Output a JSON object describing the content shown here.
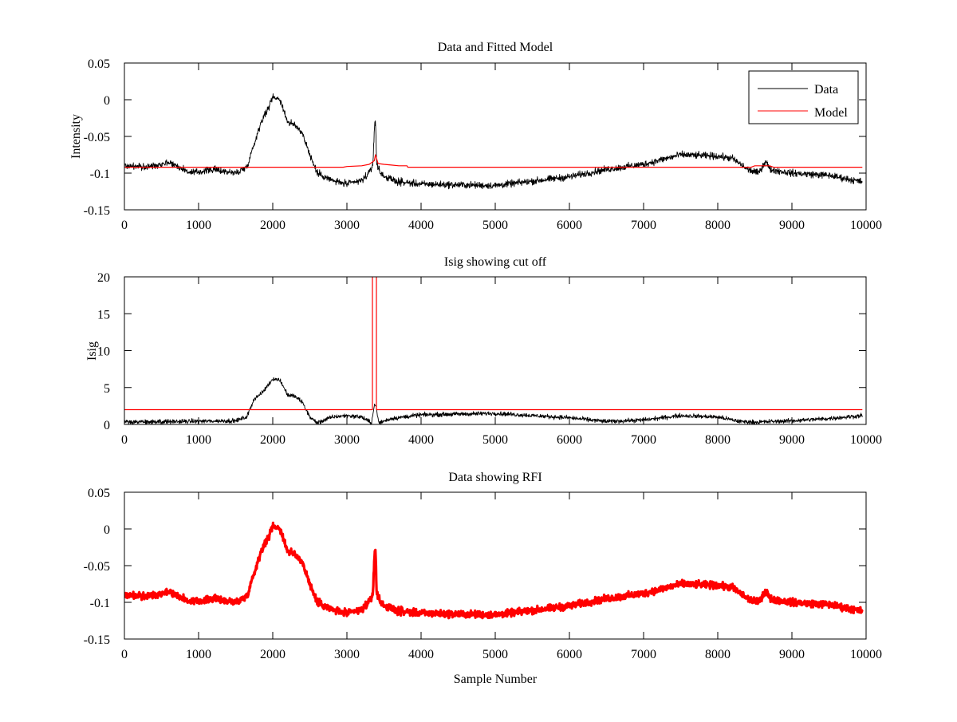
{
  "colors": {
    "data": "#000000",
    "model": "#ff0000",
    "rfi": "#ff0000",
    "axes": "#000000"
  },
  "chart_data": [
    {
      "type": "line",
      "title": "Data and Fitted Model",
      "xlabel": "",
      "ylabel": "Intensity",
      "xlim": [
        0,
        10000
      ],
      "ylim": [
        -0.15,
        0.05
      ],
      "xticks": [
        0,
        1000,
        2000,
        3000,
        4000,
        5000,
        6000,
        7000,
        8000,
        9000,
        10000
      ],
      "yticks": [
        -0.15,
        -0.1,
        -0.05,
        0,
        0.05
      ],
      "ytick_labels": [
        "-0.15",
        "-0.1",
        "-0.05",
        "0",
        "0.05"
      ],
      "legend": {
        "placement": "top-right",
        "entries": [
          "Data",
          "Model"
        ]
      },
      "series": [
        {
          "name": "Data",
          "color": "#000000",
          "noise": 0.004,
          "x": [
            0,
            300,
            600,
            900,
            1200,
            1500,
            1650,
            1750,
            1850,
            1950,
            2000,
            2100,
            2200,
            2300,
            2400,
            2500,
            2600,
            2800,
            3000,
            3200,
            3300,
            3350,
            3375,
            3385,
            3400,
            3450,
            3550,
            3700,
            4000,
            5000,
            6000,
            6500,
            7000,
            7500,
            8000,
            8200,
            8400,
            8550,
            8650,
            8700,
            9000,
            9500,
            9950
          ],
          "y": [
            -0.09,
            -0.092,
            -0.085,
            -0.1,
            -0.095,
            -0.1,
            -0.092,
            -0.06,
            -0.028,
            -0.01,
            0.005,
            0.0,
            -0.03,
            -0.035,
            -0.045,
            -0.075,
            -0.1,
            -0.11,
            -0.115,
            -0.11,
            -0.1,
            -0.088,
            -0.03,
            -0.03,
            -0.085,
            -0.1,
            -0.107,
            -0.112,
            -0.115,
            -0.117,
            -0.105,
            -0.095,
            -0.088,
            -0.075,
            -0.077,
            -0.08,
            -0.095,
            -0.1,
            -0.083,
            -0.095,
            -0.1,
            -0.103,
            -0.112
          ]
        },
        {
          "name": "Model",
          "color": "#ff0000",
          "noise": 0,
          "x": [
            0,
            2950,
            3000,
            3200,
            3300,
            3370,
            3385,
            3420,
            3500,
            3600,
            3700,
            3810,
            3820,
            8450,
            8500,
            8700,
            8750,
            9950
          ],
          "y": [
            -0.092,
            -0.092,
            -0.091,
            -0.09,
            -0.088,
            -0.083,
            -0.075,
            -0.087,
            -0.088,
            -0.089,
            -0.09,
            -0.09,
            -0.092,
            -0.092,
            -0.09,
            -0.09,
            -0.092,
            -0.092
          ]
        }
      ]
    },
    {
      "type": "line",
      "title": "Isig showing cut off",
      "xlabel": "",
      "ylabel": "Isig",
      "xlim": [
        0,
        10000
      ],
      "ylim": [
        0,
        20
      ],
      "xticks": [
        0,
        1000,
        2000,
        3000,
        4000,
        5000,
        6000,
        7000,
        8000,
        9000,
        10000
      ],
      "yticks": [
        0,
        5,
        10,
        15,
        20
      ],
      "ytick_labels": [
        "0",
        "5",
        "10",
        "15",
        "20"
      ],
      "series": [
        {
          "name": "Isig",
          "color": "#000000",
          "noise": 0.25,
          "x": [
            0,
            1500,
            1650,
            1750,
            1850,
            1950,
            2000,
            2100,
            2200,
            2300,
            2400,
            2500,
            2600,
            2800,
            3000,
            3200,
            3330,
            3375,
            3385,
            3430,
            3600,
            4000,
            5000,
            6000,
            6500,
            7000,
            7500,
            8000,
            8300,
            8500,
            9000,
            9500,
            9950
          ],
          "y": [
            0.3,
            0.5,
            1,
            3.5,
            4.2,
            5.5,
            6.2,
            6,
            4,
            3.8,
            3,
            1,
            0.2,
            1,
            1.2,
            1,
            0.2,
            2.8,
            2.8,
            0.2,
            0.8,
            1.3,
            1.5,
            0.9,
            0.4,
            0.6,
            1.2,
            1,
            0.4,
            0.3,
            0.5,
            0.8,
            1.2
          ]
        },
        {
          "name": "Cut off",
          "color": "#ff0000",
          "noise": 0,
          "x": [
            0,
            3344,
            3344,
            3398,
            3398,
            9950
          ],
          "y": [
            2,
            2,
            25,
            25,
            2,
            2
          ]
        }
      ]
    },
    {
      "type": "scatter",
      "title": "Data showing RFI",
      "xlabel": "Sample Number",
      "ylabel": "",
      "xlim": [
        0,
        10000
      ],
      "ylim": [
        -0.15,
        0.05
      ],
      "xticks": [
        0,
        1000,
        2000,
        3000,
        4000,
        5000,
        6000,
        7000,
        8000,
        9000,
        10000
      ],
      "yticks": [
        -0.15,
        -0.1,
        -0.05,
        0,
        0.05
      ],
      "ytick_labels": [
        "-0.15",
        "-0.1",
        "-0.05",
        "0",
        "0.05"
      ],
      "series": [
        {
          "name": "RFI",
          "color": "#ff0000",
          "noise": 0.004,
          "same_as": "Data"
        }
      ]
    }
  ]
}
